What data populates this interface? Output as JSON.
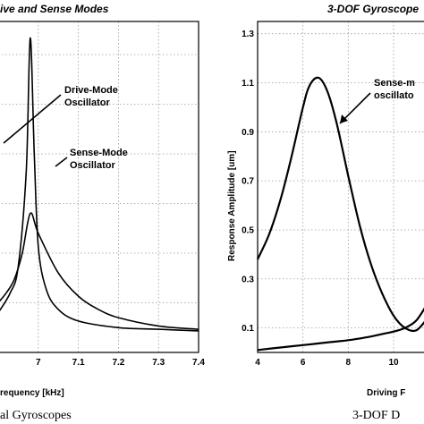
{
  "chart_data": [
    {
      "type": "line",
      "title": "ive and Sense Modes",
      "xlabel": "requency [kHz]",
      "ylabel": "",
      "xlim": [
        6.9,
        7.4
      ],
      "x_ticks": [
        "7",
        "7.1",
        "7.2",
        "7.3",
        "7.4"
      ],
      "grid": true,
      "annotations": [
        "Drive-Mode",
        "Oscillator",
        "Sense-Mode",
        "Oscillator"
      ],
      "series": [
        {
          "name": "Drive-Mode Oscillator",
          "x": [
            6.9,
            6.93,
            6.95,
            6.97,
            6.98,
            6.99,
            7.0,
            7.02,
            7.05,
            7.1,
            7.2,
            7.3,
            7.4
          ],
          "y": [
            0.12,
            0.18,
            0.26,
            0.55,
            0.95,
            0.6,
            0.32,
            0.19,
            0.13,
            0.095,
            0.075,
            0.07,
            0.065
          ]
        },
        {
          "name": "Sense-Mode Oscillator",
          "x": [
            6.9,
            6.92,
            6.94,
            6.96,
            6.98,
            7.0,
            7.05,
            7.1,
            7.15,
            7.2,
            7.3,
            7.4
          ],
          "y": [
            0.15,
            0.18,
            0.22,
            0.3,
            0.42,
            0.36,
            0.24,
            0.17,
            0.13,
            0.105,
            0.08,
            0.07
          ]
        }
      ],
      "caption": "al Gyroscopes"
    },
    {
      "type": "line",
      "title": "3-DOF Gyroscope",
      "xlabel": "Driving F",
      "ylabel": "Response Amplitude [um]",
      "xlim": [
        4,
        11.5
      ],
      "ylim": [
        0,
        1.35
      ],
      "x_ticks": [
        "4",
        "6",
        "8",
        "10"
      ],
      "y_ticks": [
        "0.1",
        "0.3",
        "0.5",
        "0.7",
        "0.9",
        "1.1",
        "1.3"
      ],
      "grid": true,
      "annotations": [
        "Sense-m",
        "oscillato"
      ],
      "series": [
        {
          "name": "Sense-mode oscillator",
          "x": [
            4,
            4.5,
            5,
            5.5,
            6,
            6.3,
            6.7,
            7.1,
            7.5,
            8,
            8.5,
            9,
            9.5,
            10,
            10.5,
            11,
            11.5
          ],
          "y": [
            0.38,
            0.48,
            0.62,
            0.8,
            1.0,
            1.09,
            1.12,
            1.06,
            0.93,
            0.72,
            0.52,
            0.36,
            0.24,
            0.15,
            0.1,
            0.09,
            0.14
          ]
        },
        {
          "name": "",
          "x": [
            4,
            5,
            6,
            7,
            8,
            9,
            9.5,
            10,
            10.5,
            11,
            11.5
          ],
          "y": [
            0.01,
            0.02,
            0.03,
            0.04,
            0.05,
            0.065,
            0.075,
            0.085,
            0.1,
            0.13,
            0.2
          ]
        }
      ],
      "caption": "3-DOF D"
    }
  ]
}
